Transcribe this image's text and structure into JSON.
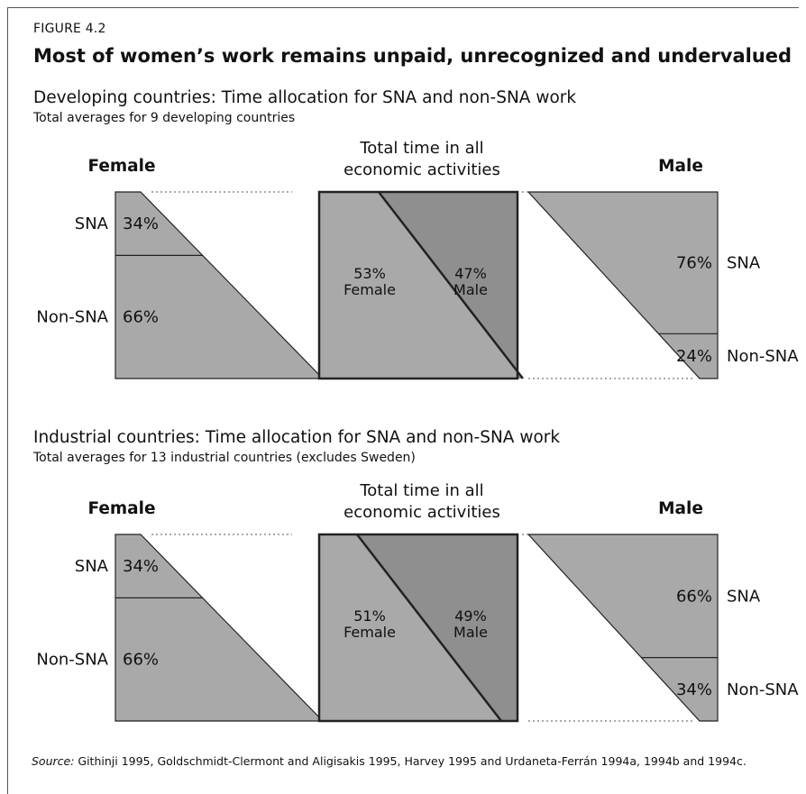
{
  "figure_label": "FIGURE 4.2",
  "figure_title": "Most of women’s work remains unpaid, unrecognized and undervalued",
  "source": {
    "label": "Source:",
    "text": " Githinji 1995, Goldschmidt-Clermont and Aligisakis 1995, Harvey 1995 and Urdaneta-Ferrán 1994a, 1994b and 1994c."
  },
  "colors": {
    "fill": "#a9a9a9",
    "fill_dark": "#8f8f8f",
    "stroke": "#222222"
  },
  "chart_data": [
    {
      "type": "diagram",
      "title": "Developing countries: Time allocation for SNA and non-SNA work",
      "subtitle": "Total averages for 9 developing countries",
      "female": {
        "label": "Female",
        "sna_label": "SNA",
        "nonsna_label": "Non-SNA",
        "sna_pct": 34,
        "nonsna_pct": 66
      },
      "total": {
        "label_line1": "Total time in all",
        "label_line2": "economic activities",
        "female_pct": 53,
        "male_pct": 47,
        "female_label": "Female",
        "male_label": "Male"
      },
      "male": {
        "label": "Male",
        "sna_label": "SNA",
        "nonsna_label": "Non-SNA",
        "sna_pct": 76,
        "nonsna_pct": 24
      }
    },
    {
      "type": "diagram",
      "title": "Industrial countries: Time allocation for SNA and non-SNA work",
      "subtitle": "Total averages for 13 industrial countries (excludes Sweden)",
      "female": {
        "label": "Female",
        "sna_label": "SNA",
        "nonsna_label": "Non-SNA",
        "sna_pct": 34,
        "nonsna_pct": 66
      },
      "total": {
        "label_line1": "Total time in all",
        "label_line2": "economic activities",
        "female_pct": 51,
        "male_pct": 49,
        "female_label": "Female",
        "male_label": "Male"
      },
      "male": {
        "label": "Male",
        "sna_label": "SNA",
        "nonsna_label": "Non-SNA",
        "sna_pct": 66,
        "nonsna_pct": 34
      }
    }
  ]
}
